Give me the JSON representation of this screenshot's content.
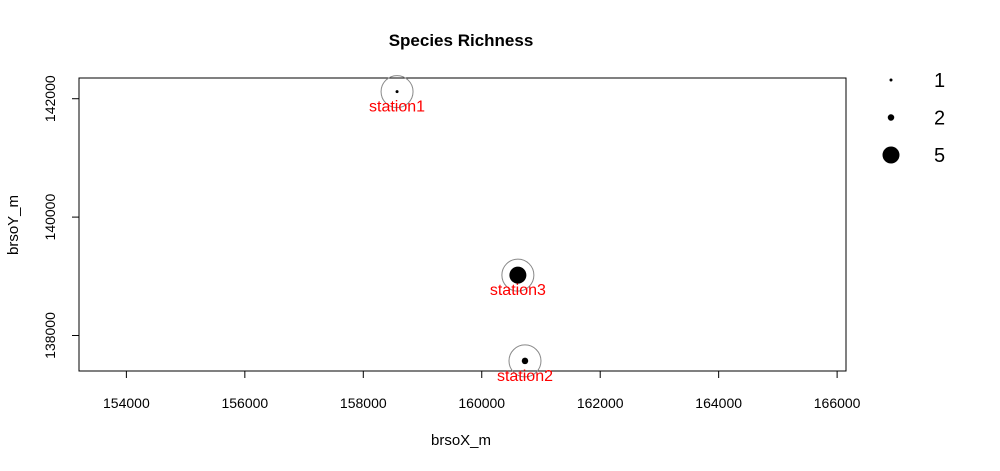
{
  "chart_data": {
    "type": "scatter",
    "title": "Species Richness",
    "xlabel": "brsoX_m",
    "ylabel": "brsoY_m",
    "xlim": [
      153200,
      166150
    ],
    "ylim": [
      137400,
      142350
    ],
    "x_ticks": [
      154000,
      156000,
      158000,
      160000,
      162000,
      164000,
      166000
    ],
    "y_ticks": [
      138000,
      140000,
      142000
    ],
    "x_tick_labels": [
      "154000",
      "156000",
      "158000",
      "160000",
      "162000",
      "164000",
      "166000"
    ],
    "y_tick_labels": [
      "138000",
      "140000",
      "142000"
    ],
    "grid": false,
    "label_color": "#ff0000",
    "points": [
      {
        "label": "station1",
        "x": 158570,
        "y": 142120,
        "richness": 1
      },
      {
        "label": "station2",
        "x": 160730,
        "y": 137570,
        "richness": 2
      },
      {
        "label": "station3",
        "x": 160610,
        "y": 139020,
        "richness": 5
      }
    ],
    "legend": {
      "position": "right",
      "entries": [
        {
          "label": "1",
          "size_value": 1
        },
        {
          "label": "2",
          "size_value": 2
        },
        {
          "label": "5",
          "size_value": 5
        }
      ]
    }
  }
}
